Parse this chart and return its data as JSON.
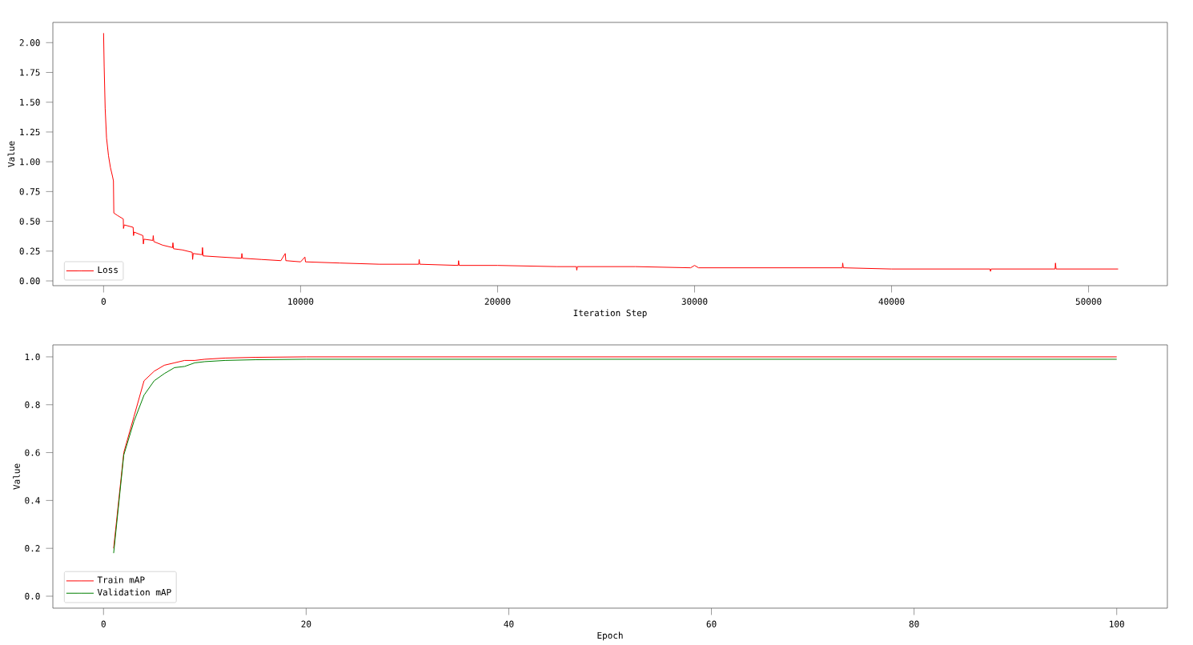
{
  "chart_data": [
    {
      "type": "line",
      "xlabel": "Iteration Step",
      "ylabel": "Value",
      "xlim": [
        -2575,
        54000
      ],
      "ylim": [
        -0.04,
        2.17
      ],
      "xticks": [
        0,
        10000,
        20000,
        30000,
        40000,
        50000
      ],
      "yticks": [
        {
          "value": 0,
          "label": "0.00"
        },
        {
          "value": 0.25,
          "label": "0.25"
        },
        {
          "value": 0.5,
          "label": "0.50"
        },
        {
          "value": 0.75,
          "label": "0.75"
        },
        {
          "value": 1,
          "label": "1.00"
        },
        {
          "value": 1.25,
          "label": "1.25"
        },
        {
          "value": 1.5,
          "label": "1.50"
        },
        {
          "value": 1.75,
          "label": "1.75"
        },
        {
          "value": 2,
          "label": "2.00"
        }
      ],
      "legend": "bottom left",
      "series": [
        {
          "name": "Loss",
          "color": "#ff0000",
          "x": [
            0,
            30,
            80,
            150,
            250,
            350,
            450,
            500,
            520,
            700,
            900,
            1000,
            1010,
            1050,
            1500,
            1520,
            1550,
            2000,
            2020,
            2050,
            2500,
            2520,
            2550,
            3000,
            3500,
            3520,
            3550,
            4000,
            4500,
            4520,
            4550,
            5000,
            5020,
            5050,
            6000,
            7000,
            7020,
            7050,
            8000,
            9000,
            9220,
            9250,
            10000,
            10220,
            10250,
            12000,
            14000,
            16000,
            16020,
            16050,
            18000,
            18020,
            18050,
            20000,
            23000,
            24000,
            24020,
            24050,
            27000,
            29800,
            30000,
            30200,
            33000,
            36000,
            37500,
            37520,
            37550,
            40000,
            45000,
            45020,
            45050,
            48300,
            48320,
            48350,
            51500
          ],
          "values": [
            2.08,
            1.8,
            1.45,
            1.2,
            1.05,
            0.95,
            0.88,
            0.84,
            0.57,
            0.55,
            0.53,
            0.52,
            0.44,
            0.47,
            0.45,
            0.38,
            0.41,
            0.38,
            0.31,
            0.35,
            0.34,
            0.38,
            0.33,
            0.3,
            0.28,
            0.32,
            0.27,
            0.26,
            0.24,
            0.18,
            0.23,
            0.22,
            0.28,
            0.21,
            0.2,
            0.19,
            0.23,
            0.19,
            0.18,
            0.17,
            0.23,
            0.17,
            0.16,
            0.2,
            0.16,
            0.15,
            0.14,
            0.14,
            0.18,
            0.14,
            0.13,
            0.17,
            0.13,
            0.13,
            0.12,
            0.12,
            0.09,
            0.12,
            0.12,
            0.11,
            0.13,
            0.11,
            0.11,
            0.11,
            0.11,
            0.15,
            0.11,
            0.1,
            0.1,
            0.08,
            0.1,
            0.1,
            0.15,
            0.1,
            0.1
          ]
        }
      ]
    },
    {
      "type": "line",
      "xlabel": "Epoch",
      "ylabel": "Value",
      "xlim": [
        -5,
        105
      ],
      "ylim": [
        -0.05,
        1.05
      ],
      "xticks": [
        0,
        20,
        40,
        60,
        80,
        100
      ],
      "yticks": [
        {
          "value": 0,
          "label": "0.0"
        },
        {
          "value": 0.2,
          "label": "0.2"
        },
        {
          "value": 0.4,
          "label": "0.4"
        },
        {
          "value": 0.6,
          "label": "0.6"
        },
        {
          "value": 0.8,
          "label": "0.8"
        },
        {
          "value": 1,
          "label": "1.0"
        }
      ],
      "legend": "bottom left",
      "x": [
        1,
        2,
        3,
        4,
        5,
        6,
        7,
        8,
        9,
        10,
        12,
        15,
        20,
        100
      ],
      "series": [
        {
          "name": "Train mAP",
          "color": "#ff0000",
          "values": [
            0.2,
            0.6,
            0.75,
            0.9,
            0.94,
            0.965,
            0.975,
            0.985,
            0.985,
            0.99,
            0.995,
            0.998,
            1.0,
            1.0
          ]
        },
        {
          "name": "Validation mAP",
          "color": "#008000",
          "values": [
            0.18,
            0.59,
            0.73,
            0.84,
            0.9,
            0.93,
            0.955,
            0.96,
            0.975,
            0.98,
            0.985,
            0.988,
            0.99,
            0.99
          ]
        }
      ]
    }
  ]
}
